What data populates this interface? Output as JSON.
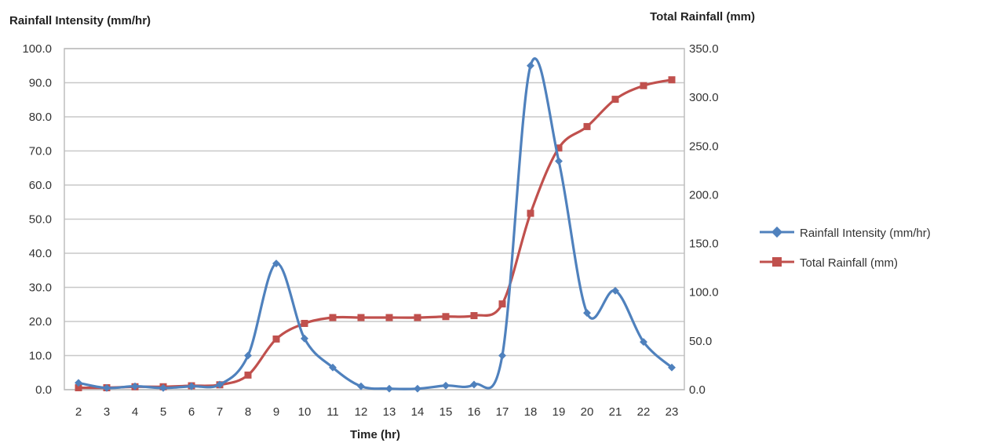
{
  "chart_data": {
    "type": "line",
    "title": "",
    "xlabel": "Time (hr)",
    "ylabel_left": "Rainfall Intensity (mm/hr)",
    "ylabel_right": "Total Rainfall (mm)",
    "x": [
      2,
      3,
      4,
      5,
      6,
      7,
      8,
      9,
      10,
      11,
      12,
      13,
      14,
      15,
      16,
      17,
      18,
      19,
      20,
      21,
      22,
      23
    ],
    "ylim_left": [
      0,
      100
    ],
    "ylim_right": [
      0,
      350
    ],
    "left_ticks": [
      "0.0",
      "10.0",
      "20.0",
      "30.0",
      "40.0",
      "50.0",
      "60.0",
      "70.0",
      "80.0",
      "90.0",
      "100.0"
    ],
    "right_ticks": [
      "0.0",
      "50.0",
      "100.0",
      "150.0",
      "200.0",
      "250.0",
      "300.0",
      "350.0"
    ],
    "grid": true,
    "legend_position": "right",
    "series": [
      {
        "name": "Rainfall Intensity (mm/hr)",
        "axis": "left",
        "color": "#4F81BD",
        "marker": "diamond",
        "values": [
          2.0,
          0.5,
          1.0,
          0.5,
          1.0,
          1.5,
          10.0,
          37.0,
          15.0,
          6.5,
          1.0,
          0.3,
          0.3,
          1.2,
          1.5,
          10.0,
          95.0,
          67.0,
          22.5,
          29.0,
          14.0,
          6.5
        ]
      },
      {
        "name": "Total Rainfall (mm)",
        "axis": "right",
        "color": "#C0504D",
        "marker": "square",
        "values": [
          2,
          2,
          3,
          3,
          4,
          5,
          15,
          52,
          68,
          74,
          74,
          74,
          74,
          75,
          76,
          88,
          181,
          248,
          270,
          298,
          312,
          318
        ]
      }
    ]
  }
}
